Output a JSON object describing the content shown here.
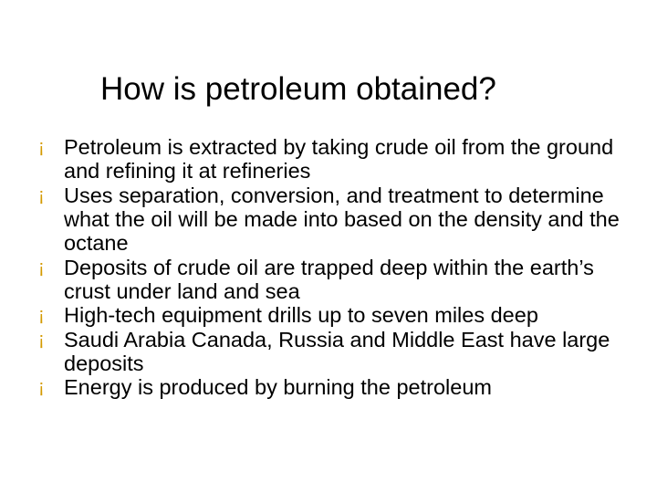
{
  "colors": {
    "background": "#ffffff",
    "title": "#000000",
    "body_text": "#000000",
    "bullet_mark": "#d49a00"
  },
  "typography": {
    "title_fontsize": 35,
    "title_weight": "400",
    "body_fontsize": 23.5,
    "body_weight": "400",
    "font_family": "Verdana, Geneva, sans-serif",
    "line_height": 1.12
  },
  "slide": {
    "title": "How is petroleum obtained?",
    "bullet_glyph": "¡",
    "bullets": [
      "Petroleum is extracted by taking crude oil from the ground and refining it at refineries",
      "Uses separation, conversion, and treatment to determine what the oil will be made into based on the density and the octane",
      "Deposits of crude oil are trapped deep within the earth’s crust under land and sea",
      "High-tech equipment drills up to seven miles deep",
      "Saudi Arabia Canada, Russia and Middle East have large deposits",
      "Energy is produced by burning the petroleum"
    ]
  }
}
